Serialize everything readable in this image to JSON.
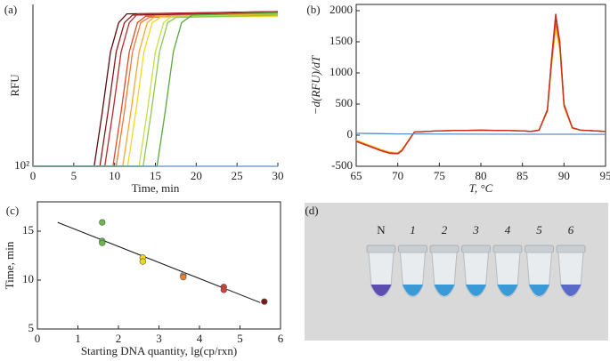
{
  "chart_data": [
    {
      "type": "line",
      "label": "(a)",
      "ylabel": "RFU",
      "xlabel": "Time, min",
      "xlim": [
        0,
        30
      ],
      "xticks": [
        0,
        5,
        10,
        15,
        20,
        25,
        30
      ],
      "ylim": [
        100,
        2600
      ],
      "yticks": [
        {
          "value": 100,
          "label": "10²"
        }
      ],
      "log_y": true,
      "series": [
        {
          "color": "#5b0d0d",
          "x": [
            0,
            7.5,
            8.5,
            9.5,
            10.5,
            11.5,
            30
          ],
          "values": [
            100,
            100,
            300,
            1000,
            1800,
            2150,
            2250
          ]
        },
        {
          "color": "#8b1a1a",
          "x": [
            0,
            8.2,
            9.2,
            10.2,
            11.2,
            12.2,
            30
          ],
          "values": [
            100,
            100,
            300,
            1000,
            1800,
            2100,
            2200
          ]
        },
        {
          "color": "#c0282d",
          "x": [
            0,
            8.8,
            9.8,
            10.8,
            11.8,
            12.8,
            30
          ],
          "values": [
            100,
            100,
            300,
            1000,
            1800,
            2150,
            2250
          ]
        },
        {
          "color": "#e04a2a",
          "x": [
            0,
            9.8,
            10.8,
            11.8,
            12.8,
            13.8,
            30
          ],
          "values": [
            100,
            100,
            300,
            1000,
            1800,
            2050,
            2150
          ]
        },
        {
          "color": "#f07a30",
          "x": [
            0,
            10.2,
            11.2,
            12.2,
            13.2,
            14.2,
            30
          ],
          "values": [
            100,
            100,
            300,
            1000,
            1800,
            2000,
            2100
          ]
        },
        {
          "color": "#f5a830",
          "x": [
            0,
            11.0,
            12.0,
            13.0,
            14.0,
            15.0,
            30
          ],
          "values": [
            100,
            100,
            300,
            1000,
            1800,
            2050,
            2150
          ]
        },
        {
          "color": "#f2d820",
          "x": [
            0,
            11.6,
            12.6,
            13.6,
            14.6,
            15.6,
            30
          ],
          "values": [
            100,
            100,
            300,
            1000,
            1800,
            2000,
            2050
          ]
        },
        {
          "color": "#c8dc4a",
          "x": [
            0,
            13.0,
            14.0,
            15.0,
            16.0,
            17.0,
            30
          ],
          "values": [
            100,
            100,
            300,
            1000,
            1800,
            2050,
            2100
          ]
        },
        {
          "color": "#8cc850",
          "x": [
            0,
            13.5,
            14.5,
            15.5,
            16.5,
            17.5,
            30
          ],
          "values": [
            100,
            100,
            300,
            1000,
            1800,
            2000,
            2100
          ]
        },
        {
          "color": "#5aa83c",
          "x": [
            0,
            15.2,
            16.2,
            17.2,
            18.2,
            19.5,
            30
          ],
          "values": [
            100,
            100,
            300,
            1000,
            1800,
            2100,
            2200
          ]
        },
        {
          "color": "#5b8fc8",
          "x": [
            0,
            30
          ],
          "values": [
            100,
            100
          ]
        }
      ]
    },
    {
      "type": "line",
      "label": "(b)",
      "ylabel": "−d(RFU)/dT",
      "xlabel": "T, °C",
      "xlim": [
        65,
        95
      ],
      "xticks": [
        65,
        70,
        75,
        80,
        85,
        90,
        95
      ],
      "ylim": [
        -500,
        2100
      ],
      "yticks": [
        -500,
        0,
        500,
        1000,
        1500,
        2000
      ],
      "x": [
        65,
        66,
        67,
        68,
        69,
        70,
        70.5,
        71,
        71.5,
        72,
        75,
        80,
        85,
        86,
        87,
        88,
        88.5,
        89,
        89.5,
        90,
        91,
        92,
        95
      ],
      "series": [
        {
          "color": "#f2d820",
          "values": [
            -80,
            -130,
            -180,
            -230,
            -270,
            -280,
            -230,
            -140,
            -40,
            50,
            70,
            80,
            70,
            60,
            80,
            380,
            1100,
            1700,
            1350,
            450,
            110,
            80,
            60
          ]
        },
        {
          "color": "#f07a30",
          "values": [
            -90,
            -140,
            -190,
            -240,
            -280,
            -290,
            -240,
            -145,
            -45,
            50,
            70,
            80,
            70,
            60,
            80,
            390,
            1150,
            1800,
            1420,
            470,
            115,
            80,
            60
          ]
        },
        {
          "color": "#8b1a1a",
          "values": [
            -100,
            -150,
            -200,
            -250,
            -290,
            -300,
            -250,
            -150,
            -50,
            50,
            70,
            80,
            70,
            60,
            80,
            400,
            1200,
            1900,
            1480,
            490,
            120,
            80,
            60
          ]
        },
        {
          "color": "#d03020",
          "values": [
            -100,
            -150,
            -200,
            -250,
            -290,
            -300,
            -250,
            -150,
            -50,
            50,
            70,
            80,
            70,
            60,
            80,
            410,
            1230,
            1950,
            1500,
            500,
            120,
            80,
            60
          ]
        },
        {
          "color": "#5b8fc8",
          "values": [
            30,
            28,
            26,
            24,
            22,
            20,
            20,
            20,
            20,
            20,
            18,
            16,
            14,
            14,
            14,
            14,
            14,
            14,
            14,
            14,
            14,
            14,
            12
          ]
        }
      ]
    },
    {
      "type": "scatter",
      "label": "(c)",
      "ylabel": "Time, min",
      "xlabel": "Starting DNA quantity, lg(cp/rxn)",
      "xlim": [
        0,
        6
      ],
      "xticks": [
        0,
        1,
        2,
        3,
        4,
        5,
        6
      ],
      "ylim": [
        5,
        18
      ],
      "yticks": [
        5,
        10,
        15
      ],
      "series": [
        {
          "color": "#6ab84a",
          "x": [
            1.6,
            1.6,
            1.6
          ],
          "values": [
            15.9,
            14.0,
            13.8
          ]
        },
        {
          "color": "#f2d820",
          "x": [
            2.6,
            2.6
          ],
          "values": [
            12.3,
            11.9
          ]
        },
        {
          "color": "#e8802e",
          "x": [
            3.6,
            3.6
          ],
          "values": [
            10.5,
            10.3
          ]
        },
        {
          "color": "#e03a3a",
          "x": [
            4.6,
            4.6
          ],
          "values": [
            9.3,
            9.0
          ]
        },
        {
          "color": "#7a1a1a",
          "x": [
            5.6
          ],
          "values": [
            7.8
          ]
        }
      ],
      "fit": {
        "color": "#111111",
        "x": [
          0.5,
          5.5
        ],
        "values": [
          15.9,
          7.7
        ]
      }
    }
  ],
  "photo": {
    "label": "(d)",
    "tube_labels": [
      "N",
      "1",
      "2",
      "3",
      "4",
      "5",
      "6"
    ]
  }
}
